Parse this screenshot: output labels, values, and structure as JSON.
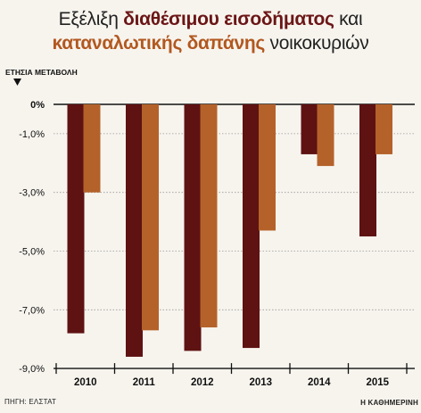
{
  "title": {
    "part1": "Εξέλιξη ",
    "highlight1": "διαθέσιμου εισοδήματος",
    "part2": " και",
    "highlight2": "καταναλωτικής δαπάνης",
    "part3": " νοικοκυριών"
  },
  "footer": {
    "source": "ΠΗΓΗ: ΕΛΣΤΑΤ",
    "brand": "Η ΚΑΘΗΜΕΡΙΝΗ"
  },
  "colors": {
    "disposable_income": "#5e1212",
    "consumer_spending": "#b4622a",
    "background": "#f7f4ee",
    "grid": "#999999"
  },
  "chart_data": {
    "type": "bar",
    "title": "Εξέλιξη διαθέσιμου εισοδήματος και καταναλωτικής δαπάνης νοικοκυριών",
    "ylabel": "ΕΤΗΣΙΑ ΜΕΤΑΒΟΛΗ",
    "xlabel": "",
    "categories": [
      "2010",
      "2011",
      "2012",
      "2013",
      "2014",
      "2015"
    ],
    "series": [
      {
        "name": "",
        "values": [
          -7.8,
          -8.6,
          -8.4,
          -8.3,
          -1.7,
          -4.5
        ]
      },
      {
        "name": "",
        "values": [
          -3.0,
          -7.7,
          -7.6,
          -4.3,
          -2.1,
          -1.7
        ]
      }
    ],
    "ylim": [
      -9.0,
      0
    ],
    "yticks": [
      0,
      -1.0,
      -3.0,
      -5.0,
      -7.0,
      -9.0
    ],
    "ytick_labels": [
      "0%",
      "-1,0%",
      "-3,0%",
      "-5,0%",
      "-7,0%",
      "-9,0%"
    ],
    "grid": true
  }
}
